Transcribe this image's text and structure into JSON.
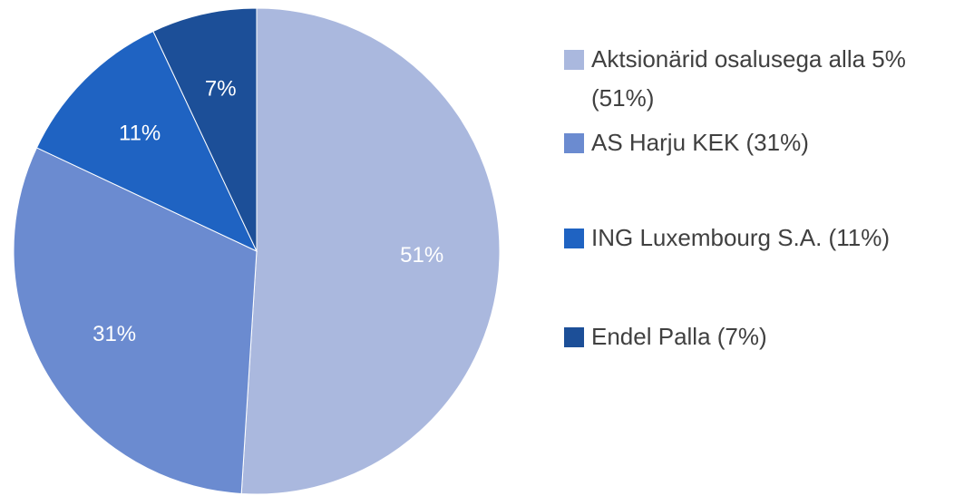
{
  "chart_data": {
    "type": "pie",
    "categories": [
      "Aktsionärid osalusega alla 5% (51%)",
      "AS Harju KEK (31%)",
      "ING Luxembourg S.A. (11%)",
      "Endel Palla (7%)"
    ],
    "values": [
      51,
      31,
      11,
      7
    ],
    "value_labels": [
      "51%",
      "31%",
      "11%",
      "7%"
    ],
    "colors": [
      "#aab8de",
      "#6b8bd0",
      "#1f63c2",
      "#1c4f98"
    ],
    "legend": "right"
  }
}
